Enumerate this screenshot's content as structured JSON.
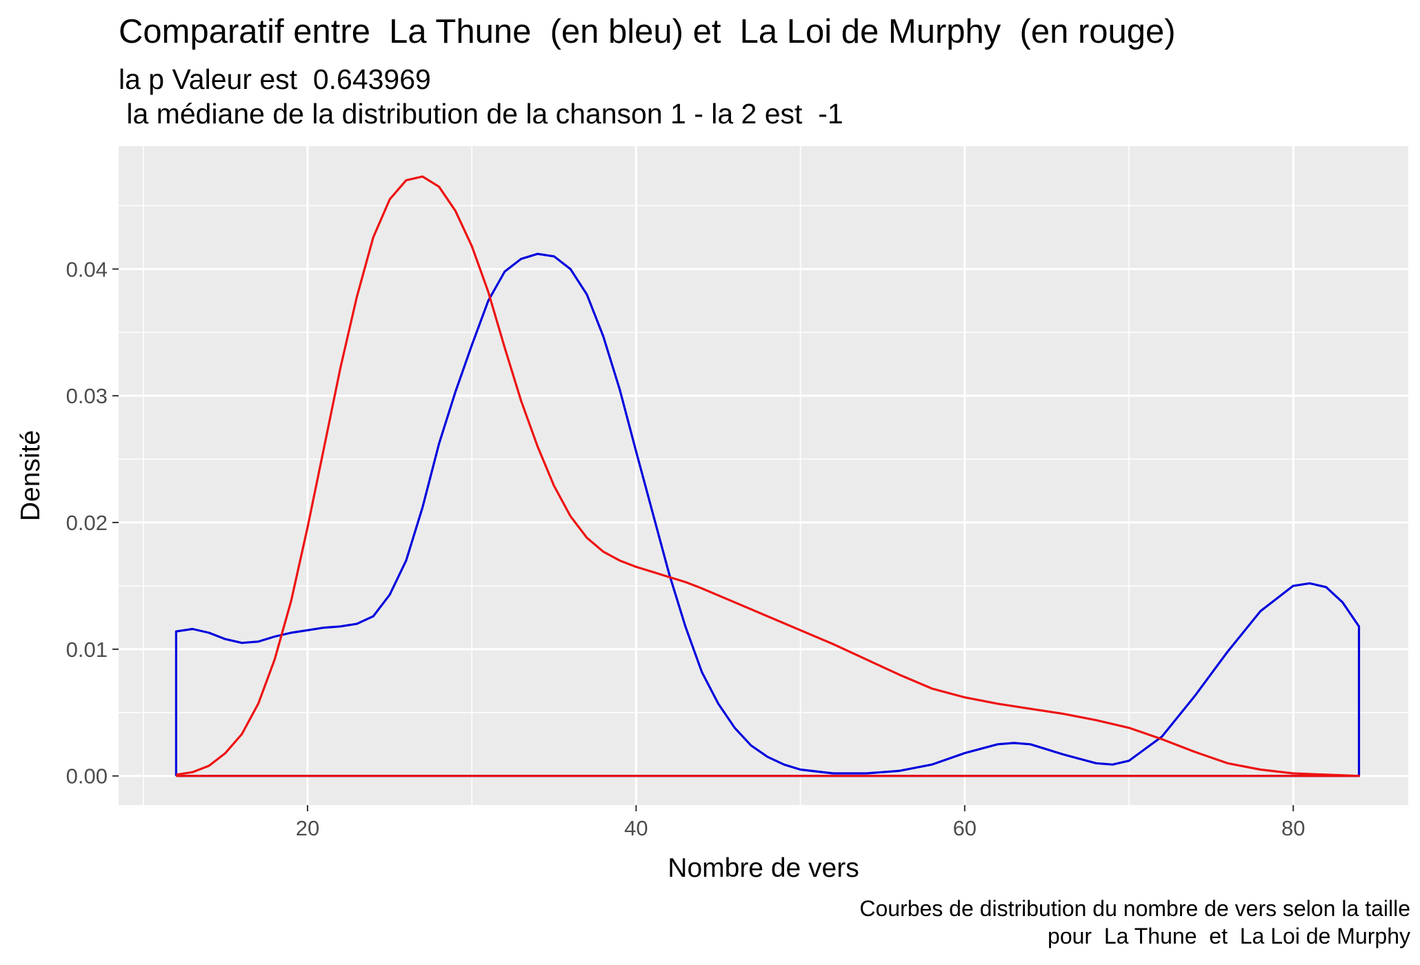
{
  "chart_data": {
    "type": "line",
    "title": "Comparatif entre  La Thune  (en bleu) et  La Loi de Murphy  (en rouge)",
    "subtitle": [
      "la p Valeur est  0.643969",
      " la médiane de la distribution de la chanson 1 - la 2 est  -1"
    ],
    "caption": [
      "Courbes de distribution du nombre de vers selon la taille",
      "pour  La Thune  et  La Loi de Murphy"
    ],
    "xlabel": "Nombre de vers",
    "ylabel": "Densité",
    "xlim": [
      8.5,
      87
    ],
    "ylim": [
      -0.0023,
      0.0497
    ],
    "x_ticks": [
      20,
      40,
      60,
      80
    ],
    "x_tick_labels": [
      "20",
      "40",
      "60",
      "80"
    ],
    "y_ticks": [
      0.0,
      0.01,
      0.02,
      0.03,
      0.04
    ],
    "y_tick_labels": [
      "0.00",
      "0.01",
      "0.02",
      "0.03",
      "0.04"
    ],
    "grid": true,
    "colors": {
      "panel": "#ebebeb",
      "grid": "#ffffff",
      "tick_text": "#4d4d4d",
      "blue": "#0000dd",
      "red": "#ee1111"
    },
    "series": [
      {
        "color": "#0000dd",
        "x": [
          12,
          12,
          13,
          14,
          15,
          16,
          17,
          18,
          19,
          20,
          21,
          22,
          23,
          24,
          25,
          26,
          27,
          28,
          29,
          30,
          31,
          32,
          33,
          34,
          35,
          36,
          37,
          38,
          39,
          40,
          41,
          42,
          43,
          44,
          45,
          46,
          47,
          48,
          49,
          50,
          52,
          54,
          56,
          58,
          60,
          62,
          63,
          64,
          66,
          68,
          69,
          70,
          72,
          74,
          76,
          78,
          80,
          81,
          82,
          83,
          84,
          84,
          12
        ],
        "y": [
          0,
          0.0114,
          0.0116,
          0.0113,
          0.0108,
          0.0105,
          0.0106,
          0.011,
          0.0113,
          0.0115,
          0.0117,
          0.0118,
          0.012,
          0.0126,
          0.0143,
          0.017,
          0.0212,
          0.0262,
          0.0303,
          0.034,
          0.0375,
          0.0398,
          0.0408,
          0.0412,
          0.041,
          0.04,
          0.038,
          0.0347,
          0.0305,
          0.0256,
          0.0208,
          0.016,
          0.0118,
          0.0082,
          0.0057,
          0.0038,
          0.0024,
          0.0015,
          0.0009,
          0.0005,
          0.0002,
          0.0002,
          0.0004,
          0.0009,
          0.0018,
          0.0025,
          0.0026,
          0.0025,
          0.0017,
          0.001,
          0.0009,
          0.0012,
          0.0031,
          0.0063,
          0.0098,
          0.013,
          0.015,
          0.0152,
          0.0149,
          0.0137,
          0.0118,
          0,
          0
        ]
      },
      {
        "color": "#ee1111",
        "x": [
          12,
          13,
          14,
          15,
          16,
          17,
          18,
          19,
          20,
          21,
          22,
          23,
          24,
          25,
          26,
          27,
          28,
          29,
          30,
          31,
          32,
          33,
          34,
          35,
          36,
          37,
          38,
          39,
          40,
          41,
          42,
          43,
          44,
          46,
          48,
          50,
          52,
          54,
          56,
          58,
          60,
          62,
          64,
          66,
          68,
          70,
          72,
          74,
          76,
          78,
          80,
          82,
          84,
          84,
          12
        ],
        "y": [
          0.0001,
          0.0003,
          0.0008,
          0.0018,
          0.0033,
          0.0057,
          0.0092,
          0.0138,
          0.0196,
          0.0259,
          0.0322,
          0.0378,
          0.0425,
          0.0455,
          0.047,
          0.0473,
          0.0465,
          0.0446,
          0.0418,
          0.0382,
          0.0338,
          0.0296,
          0.026,
          0.0229,
          0.0205,
          0.0188,
          0.0177,
          0.017,
          0.0165,
          0.0161,
          0.0157,
          0.0153,
          0.0148,
          0.0137,
          0.0126,
          0.0115,
          0.0104,
          0.0092,
          0.008,
          0.0069,
          0.0062,
          0.0057,
          0.0053,
          0.0049,
          0.0044,
          0.0038,
          0.0029,
          0.0019,
          0.001,
          0.0005,
          0.0002,
          0.0001,
          0.0,
          0,
          0
        ]
      }
    ]
  }
}
